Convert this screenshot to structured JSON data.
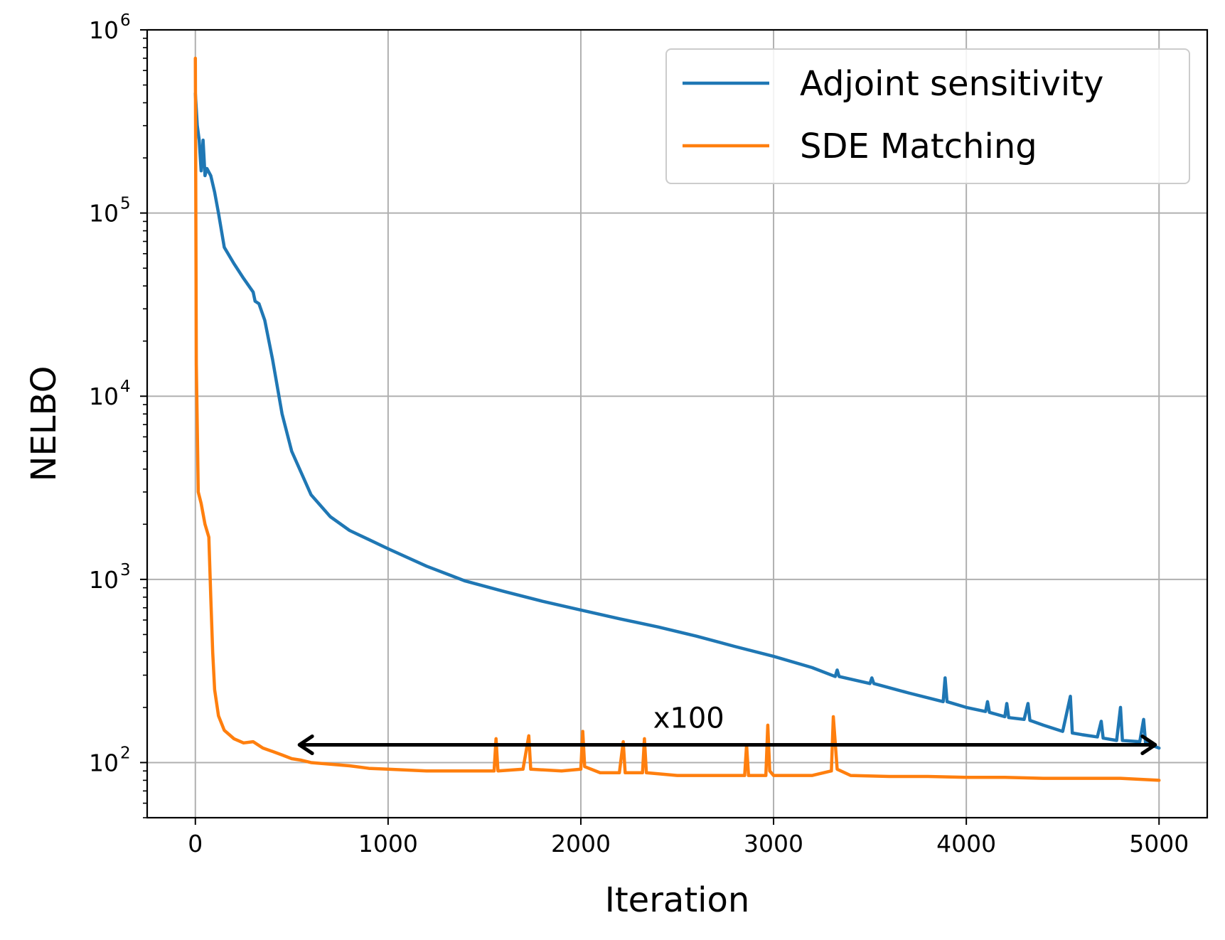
{
  "chart_data": {
    "type": "line",
    "xlabel": "Iteration",
    "ylabel": "NELBO",
    "xlim": [
      -250,
      5250
    ],
    "ylim": [
      50,
      1000000
    ],
    "yscale": "log",
    "grid": true,
    "legend_position": "top-right",
    "x_ticks": [
      {
        "value": 0,
        "label": "0"
      },
      {
        "value": 1000,
        "label": "1000"
      },
      {
        "value": 2000,
        "label": "2000"
      },
      {
        "value": 3000,
        "label": "3000"
      },
      {
        "value": 4000,
        "label": "4000"
      },
      {
        "value": 5000,
        "label": "5000"
      }
    ],
    "y_ticks": [
      {
        "value": 100,
        "base": "10",
        "exp": "2"
      },
      {
        "value": 1000,
        "base": "10",
        "exp": "3"
      },
      {
        "value": 10000,
        "base": "10",
        "exp": "4"
      },
      {
        "value": 100000,
        "base": "10",
        "exp": "5"
      },
      {
        "value": 1000000,
        "base": "10",
        "exp": "6"
      }
    ],
    "series": [
      {
        "name": "Adjoint sensitivity",
        "color": "#1f77b4",
        "points": [
          [
            0,
            450000
          ],
          [
            10,
            300000
          ],
          [
            20,
            250000
          ],
          [
            30,
            170000
          ],
          [
            40,
            250000
          ],
          [
            50,
            160000
          ],
          [
            60,
            175000
          ],
          [
            80,
            160000
          ],
          [
            100,
            130000
          ],
          [
            120,
            100000
          ],
          [
            150,
            65000
          ],
          [
            200,
            53000
          ],
          [
            250,
            44000
          ],
          [
            300,
            37000
          ],
          [
            310,
            33000
          ],
          [
            330,
            32000
          ],
          [
            360,
            26000
          ],
          [
            400,
            16000
          ],
          [
            450,
            8000
          ],
          [
            500,
            5000
          ],
          [
            600,
            2900
          ],
          [
            700,
            2200
          ],
          [
            800,
            1850
          ],
          [
            900,
            1650
          ],
          [
            1000,
            1470
          ],
          [
            1200,
            1180
          ],
          [
            1400,
            980
          ],
          [
            1600,
            860
          ],
          [
            1800,
            760
          ],
          [
            2000,
            680
          ],
          [
            2200,
            610
          ],
          [
            2400,
            550
          ],
          [
            2600,
            490
          ],
          [
            2800,
            430
          ],
          [
            3000,
            380
          ],
          [
            3200,
            330
          ],
          [
            3320,
            295
          ],
          [
            3330,
            320
          ],
          [
            3340,
            295
          ],
          [
            3500,
            270
          ],
          [
            3510,
            290
          ],
          [
            3520,
            270
          ],
          [
            3700,
            240
          ],
          [
            3880,
            215
          ],
          [
            3890,
            290
          ],
          [
            3900,
            215
          ],
          [
            4000,
            200
          ],
          [
            4100,
            190
          ],
          [
            4110,
            215
          ],
          [
            4120,
            188
          ],
          [
            4200,
            178
          ],
          [
            4210,
            210
          ],
          [
            4220,
            176
          ],
          [
            4300,
            172
          ],
          [
            4320,
            210
          ],
          [
            4330,
            170
          ],
          [
            4400,
            160
          ],
          [
            4500,
            148
          ],
          [
            4540,
            230
          ],
          [
            4550,
            145
          ],
          [
            4600,
            142
          ],
          [
            4680,
            138
          ],
          [
            4700,
            168
          ],
          [
            4710,
            136
          ],
          [
            4780,
            132
          ],
          [
            4800,
            200
          ],
          [
            4810,
            132
          ],
          [
            4900,
            130
          ],
          [
            4920,
            172
          ],
          [
            4930,
            128
          ],
          [
            5000,
            120
          ]
        ]
      },
      {
        "name": "SDE Matching",
        "color": "#ff7f0e",
        "points": [
          [
            0,
            700000
          ],
          [
            5,
            15000
          ],
          [
            15,
            3000
          ],
          [
            30,
            2600
          ],
          [
            50,
            2000
          ],
          [
            70,
            1700
          ],
          [
            80,
            800
          ],
          [
            90,
            400
          ],
          [
            100,
            250
          ],
          [
            120,
            180
          ],
          [
            150,
            150
          ],
          [
            200,
            135
          ],
          [
            250,
            128
          ],
          [
            300,
            130
          ],
          [
            350,
            120
          ],
          [
            400,
            115
          ],
          [
            450,
            110
          ],
          [
            500,
            105
          ],
          [
            550,
            103
          ],
          [
            600,
            100
          ],
          [
            700,
            98
          ],
          [
            800,
            96
          ],
          [
            900,
            93
          ],
          [
            1000,
            92
          ],
          [
            1200,
            90
          ],
          [
            1400,
            90
          ],
          [
            1550,
            90
          ],
          [
            1560,
            135
          ],
          [
            1570,
            90
          ],
          [
            1700,
            92
          ],
          [
            1730,
            140
          ],
          [
            1740,
            92
          ],
          [
            1900,
            90
          ],
          [
            2000,
            92
          ],
          [
            2010,
            148
          ],
          [
            2020,
            95
          ],
          [
            2100,
            88
          ],
          [
            2200,
            88
          ],
          [
            2220,
            130
          ],
          [
            2230,
            88
          ],
          [
            2320,
            88
          ],
          [
            2330,
            135
          ],
          [
            2340,
            88
          ],
          [
            2500,
            85
          ],
          [
            2700,
            85
          ],
          [
            2850,
            85
          ],
          [
            2860,
            125
          ],
          [
            2870,
            85
          ],
          [
            2960,
            85
          ],
          [
            2970,
            160
          ],
          [
            2980,
            90
          ],
          [
            3000,
            85
          ],
          [
            3200,
            85
          ],
          [
            3300,
            90
          ],
          [
            3310,
            178
          ],
          [
            3330,
            92
          ],
          [
            3400,
            85
          ],
          [
            3600,
            84
          ],
          [
            3800,
            84
          ],
          [
            4000,
            83
          ],
          [
            4200,
            83
          ],
          [
            4400,
            82
          ],
          [
            4600,
            82
          ],
          [
            4800,
            82
          ],
          [
            5000,
            80
          ]
        ]
      }
    ],
    "annotations": [
      {
        "text": "x100",
        "arrow_from": [
          540,
          125
        ],
        "arrow_to": [
          4980,
          125
        ],
        "arrow_style": "double"
      }
    ]
  }
}
